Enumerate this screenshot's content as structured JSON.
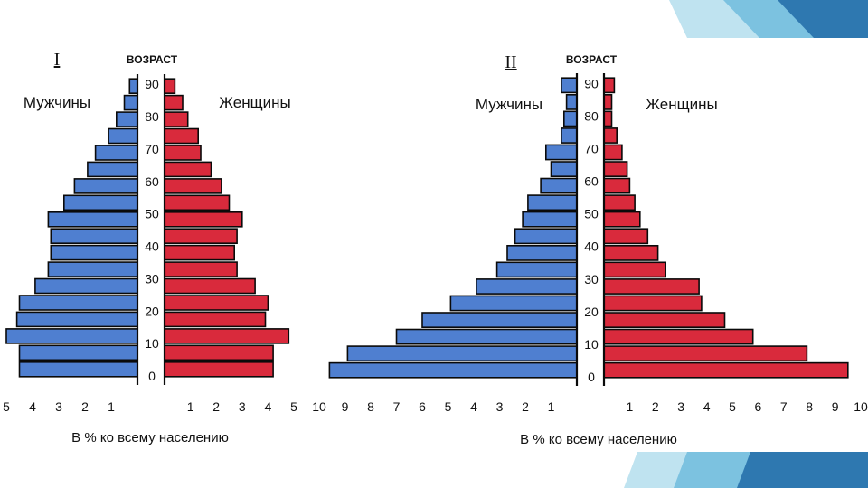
{
  "colors": {
    "male": "#4f7fd0",
    "female": "#d92a3c",
    "outline": "#0a0a0a",
    "decor_light": "#bfe3f0",
    "decor_mid": "#7cc2e0",
    "decor_dark": "#2e78b0"
  },
  "chart_data": [
    {
      "type": "bar",
      "title": "I",
      "age_axis_label": "ВОЗРАСТ",
      "age_ticks": [
        "0",
        "10",
        "20",
        "30",
        "40",
        "50",
        "60",
        "70",
        "80",
        "90"
      ],
      "left_label": "Мужчины",
      "right_label": "Женщины",
      "xlabel": "В % ко всему населению",
      "x_ticks": [
        "1",
        "2",
        "3",
        "4",
        "5"
      ],
      "xlim": [
        0,
        5
      ],
      "series": [
        {
          "name": "Мужчины",
          "values": [
            4.5,
            4.5,
            5.0,
            4.6,
            4.5,
            3.9,
            3.4,
            3.3,
            3.3,
            3.4,
            2.8,
            2.4,
            1.9,
            1.6,
            1.1,
            0.8,
            0.5,
            0.3
          ]
        },
        {
          "name": "Женщины",
          "values": [
            4.2,
            4.2,
            4.8,
            3.9,
            4.0,
            3.5,
            2.8,
            2.7,
            2.8,
            3.0,
            2.5,
            2.2,
            1.8,
            1.4,
            1.3,
            0.9,
            0.7,
            0.4
          ]
        }
      ]
    },
    {
      "type": "bar",
      "title": "II",
      "age_axis_label": "ВОЗРАСТ",
      "age_ticks": [
        "0",
        "10",
        "20",
        "30",
        "40",
        "50",
        "60",
        "70",
        "80",
        "90"
      ],
      "left_label": "Мужчины",
      "right_label": "Женщины",
      "xlabel": "В % ко всему населению",
      "x_ticks": [
        "1",
        "2",
        "3",
        "4",
        "5",
        "6",
        "7",
        "8",
        "9",
        "10"
      ],
      "xlim": [
        0,
        10
      ],
      "series": [
        {
          "name": "Мужчины",
          "values": [
            9.6,
            8.9,
            7.0,
            6.0,
            4.9,
            3.9,
            3.1,
            2.7,
            2.4,
            2.1,
            1.9,
            1.4,
            1.0,
            1.2,
            0.6,
            0.5,
            0.4,
            0.6
          ]
        },
        {
          "name": "Женщины",
          "values": [
            9.5,
            7.9,
            5.8,
            4.7,
            3.8,
            3.7,
            2.4,
            2.1,
            1.7,
            1.4,
            1.2,
            1.0,
            0.9,
            0.7,
            0.5,
            0.3,
            0.3,
            0.4
          ]
        }
      ]
    }
  ]
}
